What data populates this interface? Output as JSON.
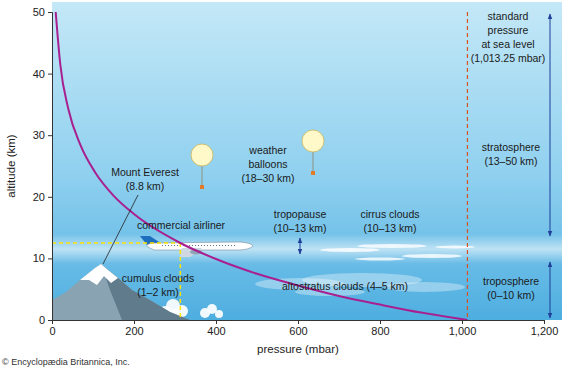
{
  "chart_data": {
    "type": "line",
    "x_label": "pressure (mbar)",
    "y_label": "altitude (km)",
    "x": [
      9,
      20,
      40,
      70,
      105,
      150,
      200,
      313,
      400,
      500,
      600,
      700,
      800,
      900,
      1013.25
    ],
    "series": [
      {
        "color": "#a8208f",
        "values": [
          50,
          41.6,
          34.2,
          28.3,
          24,
          20.2,
          17.2,
          12.5,
          9.9,
          7.5,
          5.6,
          3.9,
          2.5,
          1.2,
          0
        ]
      }
    ],
    "xlim": [
      0,
      1200
    ],
    "xticks": [
      0,
      200,
      400,
      600,
      800,
      {
        "value": 1000,
        "label": "1,000"
      },
      {
        "value": 1200,
        "label": "1,200"
      }
    ],
    "ylim": [
      0,
      50
    ],
    "yticks": [
      0,
      10,
      20,
      30,
      40,
      50
    ],
    "reference_lines": [
      {
        "x": 1013.25,
        "color": "#d9531e",
        "line_style": "dashed",
        "lines": [
          "standard",
          "pressure",
          "at sea level",
          "(1,013.25 mbar)"
        ]
      }
    ],
    "guide_point": {
      "x": 313,
      "y": 12.5,
      "color": "#ffe400",
      "line_style": "dashed"
    },
    "annotations": [
      {
        "lines": [
          "Mount Everest",
          "(8.8 km)"
        ]
      },
      {
        "lines": [
          "cumulus clouds",
          "(1–2 km)"
        ]
      },
      {
        "lines": [
          "commercial airliner"
        ]
      },
      {
        "lines": [
          "weather",
          "balloons",
          "(18–30 km)"
        ]
      },
      {
        "lines": [
          "tropopause",
          "(10–13 km)"
        ]
      },
      {
        "lines": [
          "cirrus clouds",
          "(10–13 km)"
        ]
      },
      {
        "lines": [
          "altostratus clouds (4–5 km)"
        ]
      },
      {
        "lines": [
          "stratosphere",
          "(13–50 km)"
        ]
      },
      {
        "lines": [
          "troposphere",
          "(0–10 km)"
        ]
      }
    ],
    "credit": "© Encyclopædia Britannica, Inc."
  }
}
